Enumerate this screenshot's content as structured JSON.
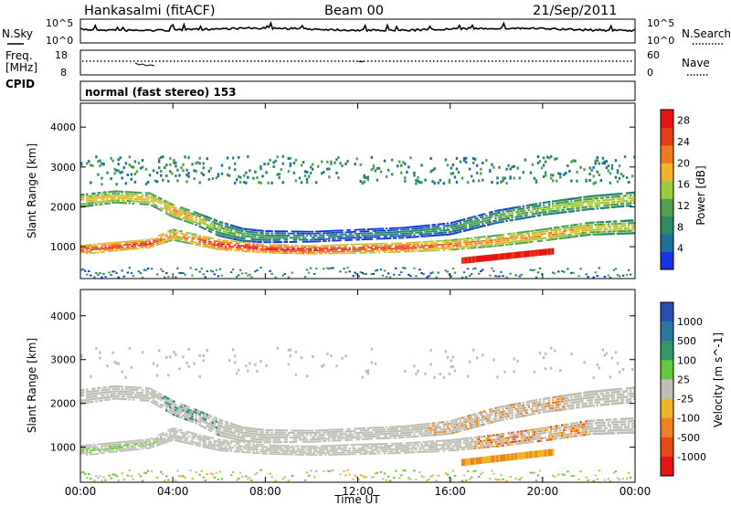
{
  "header": {
    "title": "Hankasalmi (fitACF)",
    "beam": "Beam 00",
    "date": "21/Sep/2011"
  },
  "top_panel": {
    "left_label": "N.Sky",
    "right_label": "N.Search",
    "ticks_left": [
      "10^5",
      "10^0"
    ],
    "ticks_right": [
      "10^5",
      "10^0"
    ]
  },
  "freq_panel": {
    "left_label_1": "Freq.",
    "left_label_2": "[MHz]",
    "cpid_label": "CPID",
    "ticks_left": [
      "18",
      "8"
    ],
    "ticks_right": [
      "60",
      "0"
    ],
    "right_label": "Nave"
  },
  "cpid_text": "normal (fast stereo) 153",
  "x_axis": {
    "title": "Time UT",
    "ticks": [
      "00:00",
      "04:00",
      "08:00",
      "12:00",
      "16:00",
      "20:00",
      "00:00"
    ]
  },
  "colors": {
    "power": [
      "#1432e6",
      "#1e6e9c",
      "#2e8a64",
      "#50a050",
      "#9ccc3c",
      "#f0b428",
      "#f07a1e",
      "#e63c14",
      "#e61414"
    ],
    "velocity": [
      "#2850b4",
      "#2a78a0",
      "#30966e",
      "#64c83c",
      "#bebeb4",
      "#f0b428",
      "#ee8220",
      "#e64a14",
      "#e61414"
    ]
  },
  "chart_data": [
    {
      "type": "heatmap",
      "name_hint": "power",
      "ylabel": "Slant Range [km]",
      "xlabel": "Time UT",
      "x_range": [
        "00:00",
        "24:00"
      ],
      "ylim": [
        200,
        4600
      ],
      "yticks": [
        1000,
        2000,
        3000,
        4000
      ],
      "colorbar_label": "Power [dB]",
      "colorbar_ticks": [
        4,
        8,
        12,
        16,
        20,
        24,
        28
      ],
      "colorbar_range": [
        0,
        30
      ],
      "bands": [
        {
          "t": [
            0,
            3,
            4,
            6,
            8,
            10,
            12,
            14,
            16,
            18,
            20,
            22,
            24
          ],
          "range_km": [
            920,
            1080,
            1300,
            1050,
            950,
            920,
            950,
            980,
            1040,
            1150,
            1290,
            1450,
            1500
          ],
          "width_km": [
            220,
            200,
            260,
            240,
            200,
            200,
            220,
            220,
            240,
            260,
            280,
            300,
            320
          ],
          "power_db": [
            26,
            28,
            22,
            28,
            29,
            28,
            27,
            27,
            24,
            22,
            22,
            20,
            18
          ]
        },
        {
          "t": [
            0,
            1.5,
            3,
            4,
            5,
            6,
            7,
            8,
            10,
            12,
            14,
            16,
            18,
            20,
            22,
            24
          ],
          "range_km": [
            2150,
            2250,
            2200,
            1900,
            1700,
            1450,
            1300,
            1250,
            1250,
            1300,
            1350,
            1450,
            1750,
            1950,
            2100,
            2200
          ],
          "width_km": [
            300,
            280,
            280,
            300,
            300,
            350,
            300,
            280,
            250,
            250,
            250,
            280,
            300,
            300,
            320,
            320
          ],
          "power_db": [
            20,
            20,
            20,
            22,
            20,
            16,
            14,
            12,
            10,
            8,
            10,
            12,
            14,
            16,
            18,
            18
          ]
        }
      ]
    },
    {
      "type": "heatmap",
      "name_hint": "velocity",
      "ylabel": "Slant Range [km]",
      "xlabel": "Time UT",
      "x_range": [
        "00:00",
        "24:00"
      ],
      "ylim": [
        200,
        4600
      ],
      "yticks": [
        1000,
        2000,
        3000,
        4000
      ],
      "colorbar_label": "Velocity [m s^-1]",
      "colorbar_ticks": [
        "1000",
        "500",
        "100",
        "25",
        "-25",
        "-100",
        "-500",
        "-1000"
      ]
    }
  ]
}
